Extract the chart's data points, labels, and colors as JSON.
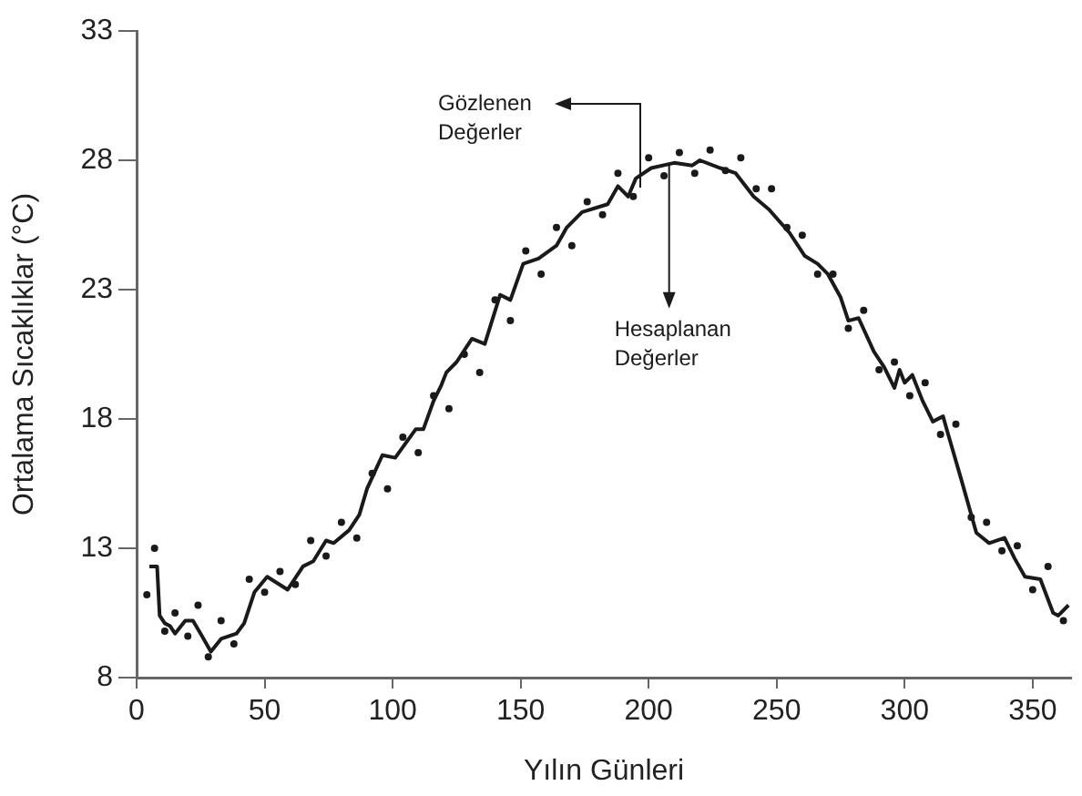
{
  "chart_data": {
    "type": "line",
    "xlabel": "Yılın Günleri",
    "ylabel": "Ortalama Sıcaklıklar (°C)",
    "xlim": [
      0,
      365
    ],
    "xticks": [
      0,
      50,
      100,
      150,
      200,
      250,
      300,
      350
    ],
    "ylim": [
      8,
      33
    ],
    "yticks": [
      8,
      13,
      18,
      23,
      28,
      33
    ],
    "grid": false,
    "legend": false,
    "annotations": [
      "Gözlenen Değerler",
      {
        "text": "Hesaplanan Değerler",
        "x": 208,
        "y": 27.9
      }
    ],
    "series": [
      {
        "color": "#1a1a1a",
        "line_style": "solid",
        "marker": "none",
        "x": [
          5,
          8,
          9,
          11,
          13,
          15,
          19,
          22,
          25,
          29,
          33,
          39,
          42,
          46,
          51,
          59,
          65,
          69,
          74,
          77,
          83,
          87,
          90,
          96,
          101,
          109,
          112,
          116,
          119,
          121,
          125,
          131,
          136,
          142,
          146,
          151,
          157,
          164,
          168,
          174,
          184,
          188,
          192,
          195,
          201,
          210,
          217,
          220,
          228,
          234,
          241,
          247,
          255,
          261,
          266,
          270,
          275,
          278,
          282,
          288,
          292,
          296,
          298,
          300,
          303,
          307,
          311,
          315,
          317,
          322,
          328,
          333,
          339,
          343,
          347,
          353,
          358,
          360,
          364
        ],
        "values": [
          12.3,
          12.3,
          10.4,
          10.1,
          10.0,
          9.7,
          10.2,
          10.2,
          9.7,
          9.0,
          9.5,
          9.7,
          10.1,
          11.3,
          11.9,
          11.4,
          12.3,
          12.5,
          13.3,
          13.2,
          13.7,
          14.3,
          15.3,
          16.6,
          16.5,
          17.6,
          17.6,
          18.7,
          19.3,
          19.8,
          20.2,
          21.1,
          20.9,
          22.8,
          22.6,
          24.0,
          24.2,
          24.7,
          25.4,
          26.0,
          26.3,
          27.0,
          26.6,
          27.3,
          27.7,
          27.9,
          27.8,
          28.0,
          27.7,
          27.5,
          26.6,
          26.1,
          25.2,
          24.3,
          24.0,
          23.6,
          22.7,
          21.8,
          21.9,
          20.6,
          20.0,
          19.2,
          19.9,
          19.4,
          19.7,
          18.7,
          17.9,
          18.1,
          17.4,
          15.7,
          13.6,
          13.2,
          13.4,
          12.6,
          11.9,
          11.8,
          10.5,
          10.4,
          10.8
        ]
      },
      {
        "type": "scatter",
        "color": "#1a1a1a",
        "marker": "circle",
        "x": [
          4,
          7,
          11,
          15,
          20,
          24,
          28,
          33,
          38,
          44,
          50,
          56,
          62,
          68,
          74,
          80,
          86,
          92,
          98,
          104,
          110,
          116,
          122,
          128,
          134,
          140,
          146,
          152,
          158,
          164,
          170,
          176,
          182,
          188,
          194,
          200,
          206,
          212,
          218,
          224,
          230,
          236,
          242,
          248,
          254,
          260,
          266,
          272,
          278,
          284,
          290,
          296,
          302,
          308,
          314,
          320,
          326,
          332,
          338,
          344,
          350,
          356,
          362
        ],
        "values": [
          11.2,
          13.0,
          9.8,
          10.5,
          9.6,
          10.8,
          8.8,
          10.2,
          9.3,
          11.8,
          11.3,
          12.1,
          11.6,
          13.3,
          12.7,
          14.0,
          13.4,
          15.9,
          15.3,
          17.3,
          16.7,
          18.9,
          18.4,
          20.5,
          19.8,
          22.6,
          21.8,
          24.5,
          23.6,
          25.4,
          24.7,
          26.4,
          25.9,
          27.5,
          26.6,
          28.1,
          27.4,
          28.3,
          27.5,
          28.4,
          27.6,
          28.1,
          26.9,
          26.9,
          25.4,
          25.1,
          23.6,
          23.6,
          21.5,
          22.2,
          19.9,
          20.2,
          18.9,
          19.4,
          17.4,
          17.8,
          14.2,
          14.0,
          12.9,
          13.1,
          11.4,
          12.3,
          10.2
        ]
      }
    ]
  }
}
